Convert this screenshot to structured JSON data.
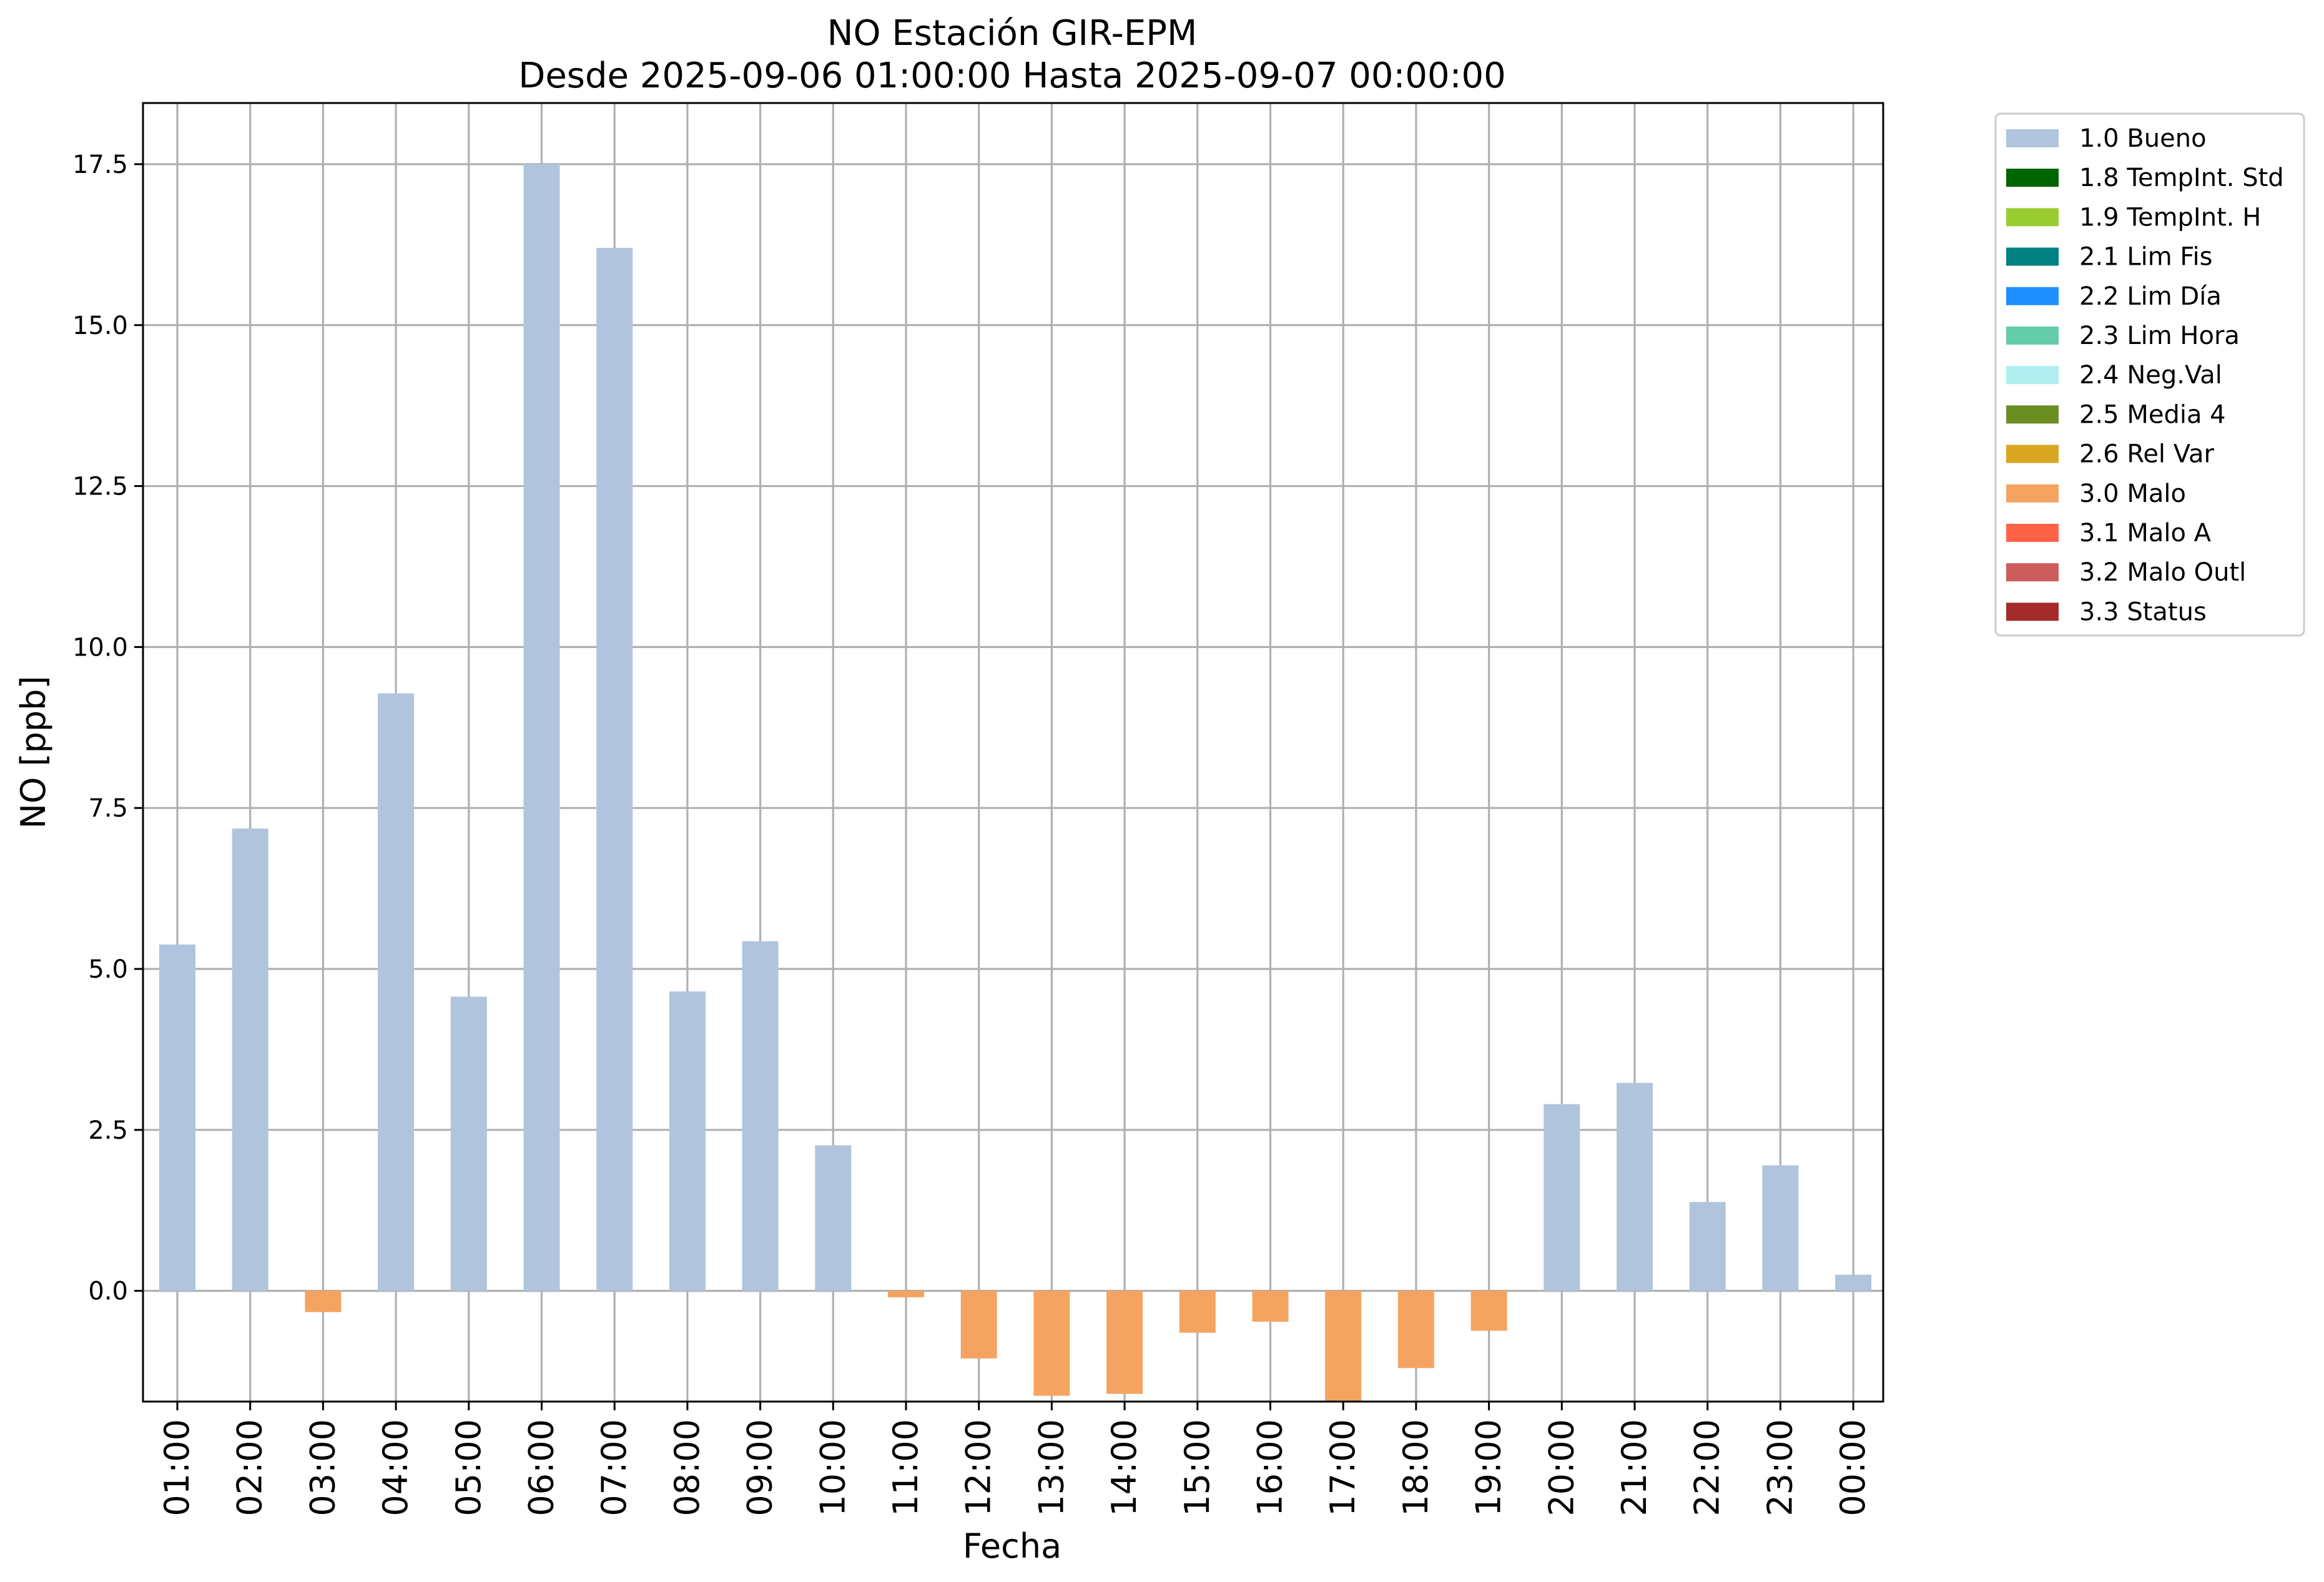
{
  "chart_data": {
    "type": "bar",
    "title": "NO Estación GIR-EPM",
    "subtitle": "Desde 2025-09-06 01:00:00 Hasta 2025-09-07 00:00:00",
    "xlabel": "Fecha",
    "ylabel": "NO [ppb]",
    "ylim": [
      -1.72,
      18.45
    ],
    "yticks": [
      "0.0",
      "2.5",
      "5.0",
      "7.5",
      "10.0",
      "12.5",
      "15.0",
      "17.5"
    ],
    "ytick_values": [
      0,
      2.5,
      5,
      7.5,
      10,
      12.5,
      15,
      17.5
    ],
    "grid": true,
    "legend_position": "outside-top-right",
    "categories": [
      "01:00",
      "02:00",
      "03:00",
      "04:00",
      "05:00",
      "06:00",
      "07:00",
      "08:00",
      "09:00",
      "10:00",
      "11:00",
      "12:00",
      "13:00",
      "14:00",
      "15:00",
      "16:00",
      "17:00",
      "18:00",
      "19:00",
      "20:00",
      "21:00",
      "22:00",
      "23:00",
      "00:00"
    ],
    "values": [
      5.38,
      7.18,
      -0.33,
      9.28,
      4.57,
      17.5,
      16.2,
      4.65,
      5.43,
      2.26,
      -0.1,
      -1.05,
      -1.63,
      -1.6,
      -0.65,
      -0.48,
      -1.72,
      -1.2,
      -0.62,
      2.9,
      3.23,
      1.38,
      1.95,
      0.25
    ],
    "quality": [
      "1.0 Bueno",
      "1.0 Bueno",
      "3.0 Malo",
      "1.0 Bueno",
      "1.0 Bueno",
      "1.0 Bueno",
      "1.0 Bueno",
      "1.0 Bueno",
      "1.0 Bueno",
      "1.0 Bueno",
      "3.0 Malo",
      "3.0 Malo",
      "3.0 Malo",
      "3.0 Malo",
      "3.0 Malo",
      "3.0 Malo",
      "3.0 Malo",
      "3.0 Malo",
      "3.0 Malo",
      "1.0 Bueno",
      "1.0 Bueno",
      "1.0 Bueno",
      "1.0 Bueno",
      "1.0 Bueno"
    ],
    "legend": [
      {
        "name": "1.0 Bueno",
        "color": "#b0c4de"
      },
      {
        "name": "1.8 TempInt. Std",
        "color": "#006400"
      },
      {
        "name": "1.9 TempInt. H",
        "color": "#9acd32"
      },
      {
        "name": "2.1 Lim Fis",
        "color": "#008080"
      },
      {
        "name": "2.2 Lim Día",
        "color": "#1e90ff"
      },
      {
        "name": "2.3 Lim Hora",
        "color": "#66cdaa"
      },
      {
        "name": "2.4 Neg.Val",
        "color": "#afeeee"
      },
      {
        "name": "2.5 Media 4",
        "color": "#6b8e23"
      },
      {
        "name": "2.6 Rel Var",
        "color": "#daa520"
      },
      {
        "name": "3.0 Malo",
        "color": "#f4a460"
      },
      {
        "name": "3.1 Malo A",
        "color": "#ff6347"
      },
      {
        "name": "3.2 Malo Outl",
        "color": "#cd5c5c"
      },
      {
        "name": "3.3 Status",
        "color": "#a52a2a"
      }
    ]
  }
}
